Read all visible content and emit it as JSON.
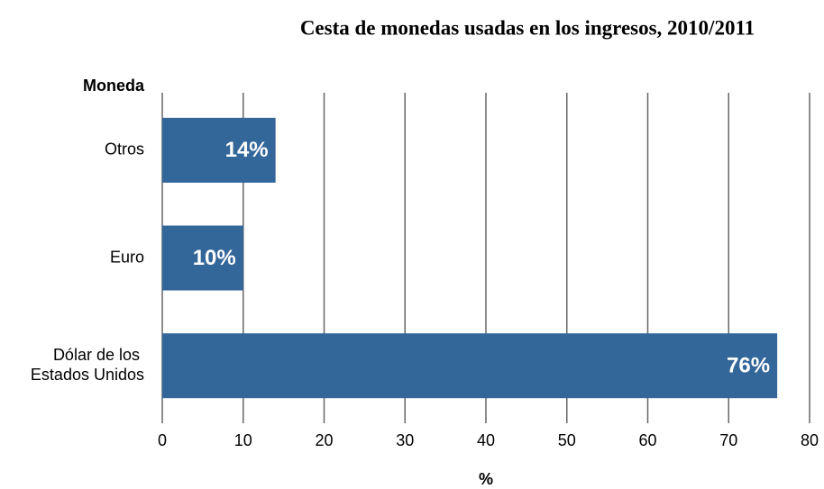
{
  "chart_data": {
    "type": "bar",
    "orientation": "horizontal",
    "title": "Cesta de monedas usadas en los ingresos, 2010/2011",
    "y_label": "Moneda",
    "x_label": "%",
    "categories": [
      "Otros",
      "Euro",
      "Dólar de los Estados Unidos"
    ],
    "values": [
      14,
      10,
      76
    ],
    "value_labels": [
      "14%",
      "10%",
      "76%"
    ],
    "color": "#336699",
    "xlim": [
      0,
      80
    ],
    "xticks": [
      0,
      10,
      20,
      30,
      40,
      50,
      60,
      70,
      80
    ],
    "grid": true
  }
}
